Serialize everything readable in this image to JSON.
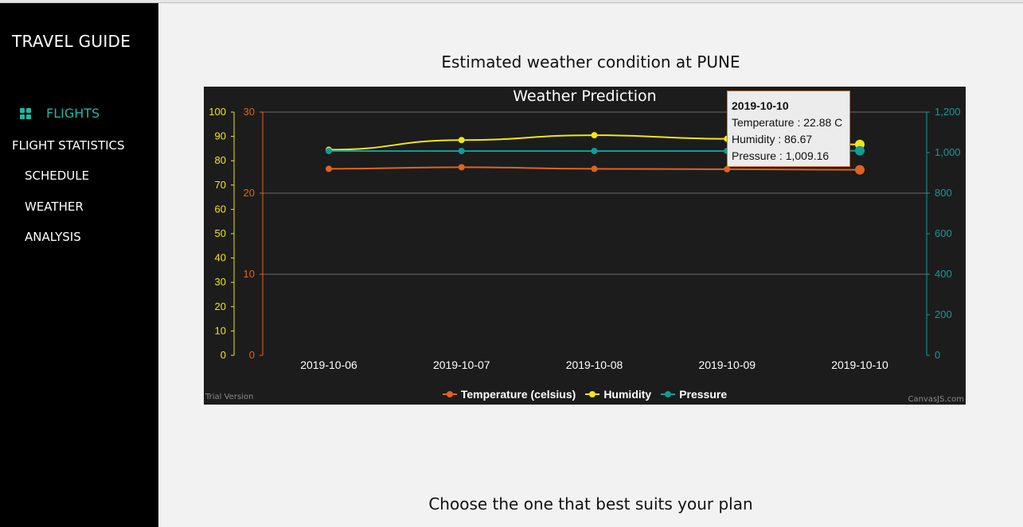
{
  "sidebar": {
    "brand": "TRAVEL GUIDE",
    "flights_label": "FLIGHTS",
    "section_label": "FLIGHT STATISTICS",
    "items": [
      {
        "label": "SCHEDULE"
      },
      {
        "label": "WEATHER"
      },
      {
        "label": "ANALYSIS"
      }
    ]
  },
  "main": {
    "heading": "Estimated weather condition at PUNE",
    "bottom_heading": "Choose the one that best suits your plan"
  },
  "colors": {
    "temperature": "#e0631f",
    "humidity": "#f0e51d",
    "pressure": "#129c97",
    "accent": "#1fb8a5"
  },
  "chart_data": {
    "type": "line",
    "title": "Weather Prediction",
    "categories": [
      "2019-10-06",
      "2019-10-07",
      "2019-10-08",
      "2019-10-09",
      "2019-10-10"
    ],
    "series": [
      {
        "name": "Temperature (celsius)",
        "axis": "temp",
        "values": [
          23.0,
          23.2,
          23.0,
          22.95,
          22.88
        ]
      },
      {
        "name": "Humidity",
        "axis": "humidity",
        "values": [
          84.5,
          88.5,
          90.5,
          89.0,
          86.67
        ]
      },
      {
        "name": "Pressure",
        "axis": "pressure",
        "values": [
          1008,
          1008,
          1008,
          1008,
          1009.16
        ]
      }
    ],
    "axes": {
      "humidity": {
        "range": [
          0,
          100
        ],
        "ticks": [
          "0",
          "10",
          "20",
          "30",
          "40",
          "50",
          "60",
          "70",
          "80",
          "90",
          "100"
        ]
      },
      "temp": {
        "range": [
          0,
          30
        ],
        "ticks": [
          "0",
          "10",
          "20",
          "30"
        ]
      },
      "pressure": {
        "range": [
          0,
          1200
        ],
        "ticks": [
          "0",
          "200",
          "400",
          "600",
          "800",
          "1,000",
          "1,200"
        ]
      }
    },
    "legend_position": "bottom",
    "trial_text": "Trial Version",
    "credit_text": "CanvasJS.com",
    "tooltip": {
      "date": "2019-10-10",
      "temperature": "Temperature : 22.88 C",
      "humidity": "Humidity : 86.67",
      "pressure": "Pressure : 1,009.16"
    }
  }
}
